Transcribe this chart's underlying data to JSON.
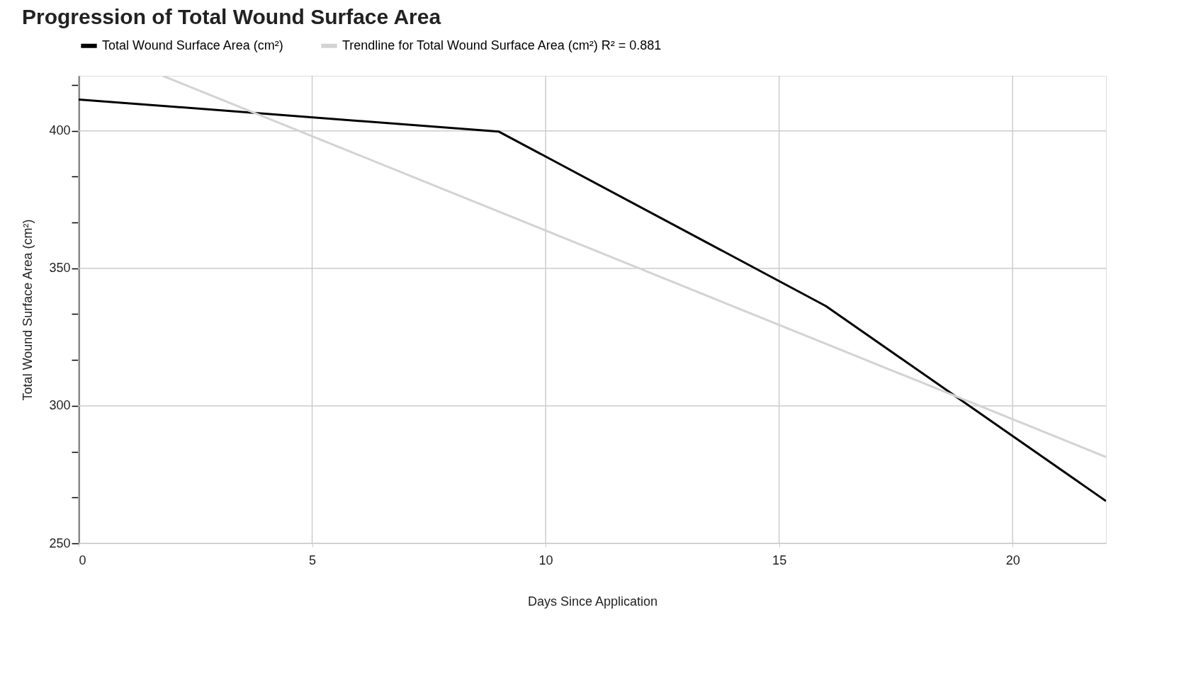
{
  "chart_data": {
    "type": "line",
    "title": "Progression of Total Wound Surface Area",
    "xlabel": "Days Since Application",
    "ylabel": "Total Wound Surface Area (cm²)",
    "series": [
      {
        "name": "Total Wound Surface Area (cm²)",
        "color": "#000000",
        "x": [
          0,
          9,
          16,
          22
        ],
        "values": [
          411.4,
          399.7,
          336.3,
          265.4
        ]
      },
      {
        "name": "Trendline for Total Wound Surface Area (cm²) R² = 0.881",
        "color": "#d3d3d3",
        "x": [
          1.8,
          22
        ],
        "values": [
          420,
          281.4
        ]
      }
    ],
    "xlim": [
      0,
      22
    ],
    "xticks": [
      0,
      5,
      10,
      15,
      20
    ],
    "ylim": [
      250,
      420
    ],
    "yticks": [
      250,
      {
        "value": 266.67,
        "label": null
      },
      {
        "value": 283.33,
        "label": null
      },
      300,
      {
        "value": 316.67,
        "label": null
      },
      {
        "value": 333.33,
        "label": null
      },
      350,
      {
        "value": 366.67,
        "label": null
      },
      {
        "value": 383.33,
        "label": null
      },
      400,
      {
        "value": 416.67,
        "label": null
      }
    ],
    "grid": true,
    "legend": "top left",
    "marker": "none",
    "line_style": "solid"
  }
}
